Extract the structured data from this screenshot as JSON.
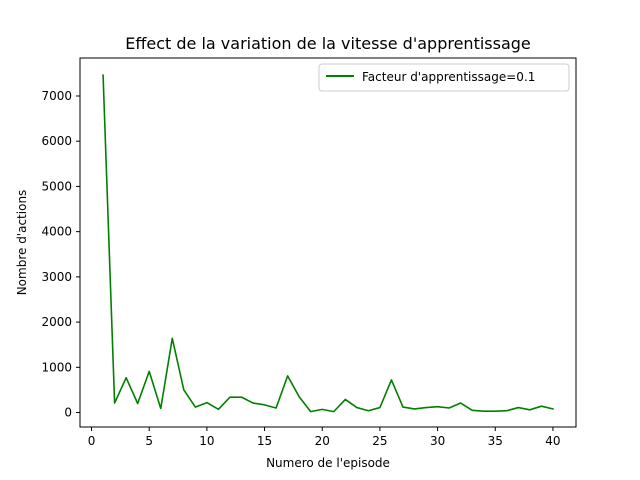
{
  "chart_data": {
    "type": "line",
    "title": "Effect de la variation de la vitesse d'apprentissage",
    "xlabel": "Numero de l'episode",
    "ylabel": "Nombre d'actions",
    "xlim": [
      -1,
      42
    ],
    "ylim": [
      -320,
      7840
    ],
    "xticks": [
      0,
      5,
      10,
      15,
      20,
      25,
      30,
      35,
      40
    ],
    "yticks": [
      0,
      1000,
      2000,
      3000,
      4000,
      5000,
      6000,
      7000
    ],
    "grid": false,
    "legend_position": "top-right",
    "series": [
      {
        "name": "Facteur d'apprentissage=0.1",
        "color": "#008000",
        "x": [
          1,
          2,
          3,
          4,
          5,
          6,
          7,
          8,
          9,
          10,
          11,
          12,
          13,
          14,
          15,
          16,
          17,
          18,
          19,
          20,
          21,
          22,
          23,
          24,
          25,
          26,
          27,
          28,
          29,
          30,
          31,
          32,
          33,
          34,
          35,
          36,
          37,
          38,
          39,
          40
        ],
        "values": [
          7460,
          210,
          770,
          200,
          910,
          90,
          1640,
          500,
          120,
          220,
          70,
          340,
          340,
          210,
          170,
          100,
          810,
          350,
          20,
          70,
          20,
          290,
          110,
          40,
          110,
          720,
          120,
          80,
          110,
          130,
          100,
          210,
          50,
          30,
          30,
          40,
          110,
          60,
          140,
          80
        ]
      }
    ]
  }
}
